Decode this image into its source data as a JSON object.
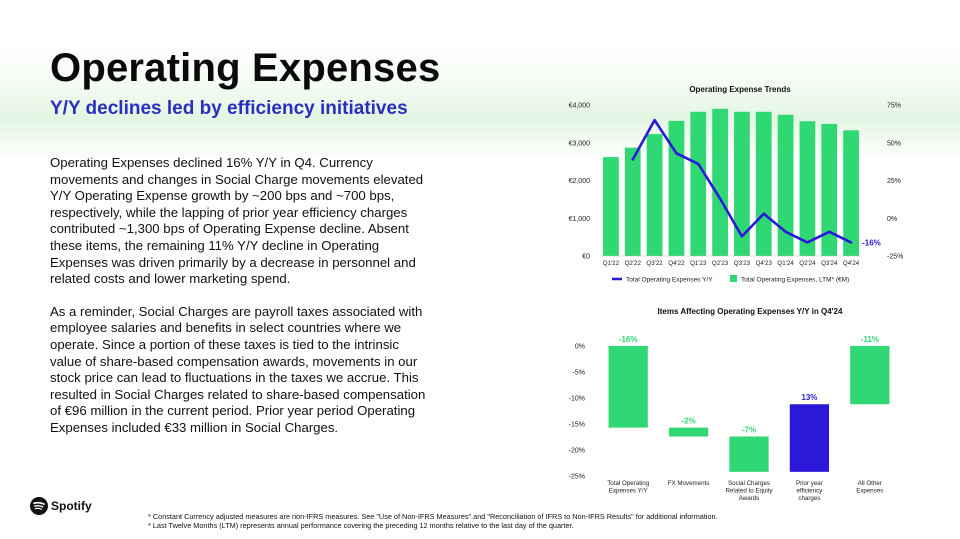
{
  "page": {
    "title": "Operating Expenses",
    "subtitle": "Y/Y declines led by efficiency initiatives",
    "paragraphs": [
      "Operating Expenses declined 16% Y/Y in Q4. Currency movements and changes in Social Charge movements elevated Y/Y Operating Expense growth by ~200 bps and ~700 bps, respectively, while the lapping of prior year efficiency charges contributed ~1,300 bps of Operating Expense decline. Absent these items, the remaining 11% Y/Y decline in Operating Expenses was driven primarily by a decrease in personnel and related costs and lower marketing spend.",
      "As a reminder, Social Charges are payroll taxes associated with employee salaries and benefits in select countries where we operate. Since a portion of these taxes is tied to the intrinsic value of share-based compensation awards, movements in our stock price can lead to fluctuations in the taxes we accrue. This resulted in Social Charges related to share-based compensation of €96 million in the current period. Prior year period Operating Expenses included €33 million in Social Charges."
    ],
    "logo_text": "Spotify",
    "footnotes": [
      "* Constant Currency adjusted measures are non-IFRS measures. See \"Use of Non-IFRS Measures\" and \"Reconciliation of IFRS to Non-IFRS Results\" for additional information.",
      "* Last Twelve Months (LTM) represents annual performance covering the preceding 12 months relative to the last day of the quarter."
    ]
  },
  "colors": {
    "green": "#2fd873",
    "purple": "#2b18d9",
    "blue_title": "#2b2fc0"
  },
  "chart_data": [
    {
      "type": "bar",
      "title": "Operating Expense Trends",
      "categories": [
        "Q1'22",
        "Q2'22",
        "Q3'22",
        "Q4'22",
        "Q1'23",
        "Q2'23",
        "Q3'23",
        "Q4'23",
        "Q1'24",
        "Q2'24",
        "Q3'24",
        "Q4'24"
      ],
      "left_axis": {
        "ticks": [
          "€4,000",
          "€3,000",
          "€2,000",
          "€1,000",
          "€0"
        ],
        "range": [
          0,
          4000
        ]
      },
      "right_axis": {
        "ticks": [
          "75%",
          "50%",
          "25%",
          "0%",
          "-25%"
        ],
        "range": [
          -25,
          75
        ]
      },
      "series": [
        {
          "name": "Total Operating Expenses, LTM* (€M)",
          "type": "bar",
          "axis": "left",
          "values": [
            2620,
            2870,
            3230,
            3580,
            3820,
            3900,
            3820,
            3820,
            3740,
            3570,
            3500,
            3330
          ]
        },
        {
          "name": "Total Operating Expenses Y/Y",
          "type": "line",
          "axis": "right",
          "values": [
            null,
            39,
            65,
            43,
            36,
            13,
            -12,
            3,
            -9,
            -16,
            -9,
            -16
          ]
        }
      ],
      "last_point_label": "-16%"
    },
    {
      "type": "bar",
      "subtype": "waterfall",
      "title": "Items Affecting Operating Expenses Y/Y in Q4'24",
      "categories": [
        "Total Operating Expenses Y/Y",
        "FX Movements",
        "Social Charges Related to Equity Awards",
        "Prior year efficiency charges",
        "All Other Expenses"
      ],
      "y_axis": {
        "ticks": [
          "0%",
          "-5%",
          "-10%",
          "-15%",
          "-20%",
          "-25%"
        ],
        "range": [
          -25,
          0
        ]
      },
      "bars": [
        {
          "label": "-16%",
          "start": 0,
          "end": -15.7,
          "color": "green"
        },
        {
          "label": "-2%",
          "start": -15.7,
          "end": -17.4,
          "color": "green"
        },
        {
          "label": "-7%",
          "start": -17.4,
          "end": -24.2,
          "color": "green"
        },
        {
          "label": "13%",
          "start": -24.2,
          "end": -11.2,
          "color": "purple"
        },
        {
          "label": "-11%",
          "start": -11.2,
          "end": 0,
          "color": "green"
        }
      ]
    }
  ]
}
